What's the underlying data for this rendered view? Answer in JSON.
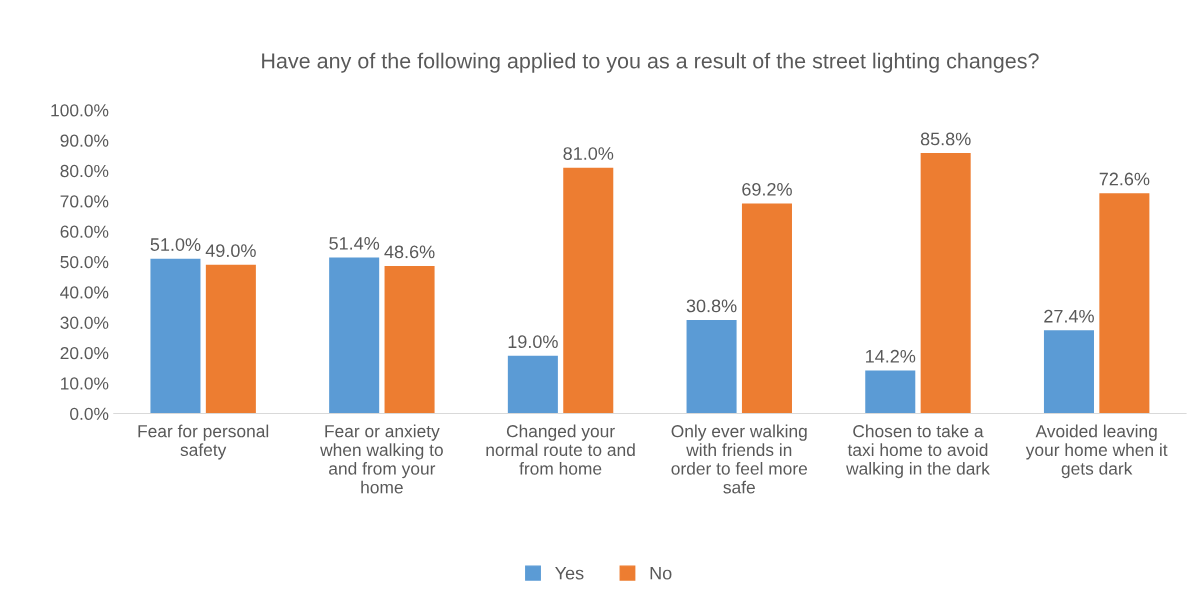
{
  "chart_data": {
    "type": "bar",
    "title": "Have any of the following applied to you as a result of the street lighting changes?",
    "categories": [
      "Fear for personal\nsafety",
      "Fear or anxiety\nwhen walking to\nand from your\nhome",
      "Changed your\nnormal route to and\nfrom home",
      "Only ever walking\nwith friends in\norder to feel more\nsafe",
      "Chosen to take a\ntaxi home to avoid\nwalking in the dark",
      "Avoided leaving\nyour home when it\ngets dark"
    ],
    "series": [
      {
        "name": "Yes",
        "color": "#5b9bd5",
        "values": [
          51.0,
          51.4,
          19.0,
          30.8,
          14.2,
          27.4
        ],
        "value_labels": [
          "51.0%",
          "51.4%",
          "19.0%",
          "30.8%",
          "14.2%",
          "27.4%"
        ]
      },
      {
        "name": "No",
        "color": "#ed7d31",
        "values": [
          49.0,
          48.6,
          81.0,
          69.2,
          85.8,
          72.6
        ],
        "value_labels": [
          "49.0%",
          "48.6%",
          "81.0%",
          "69.2%",
          "85.8%",
          "72.6%"
        ]
      }
    ],
    "ylim": [
      0,
      100
    ],
    "yticks": [
      {
        "value": 0,
        "label": "0.0%"
      },
      {
        "value": 10,
        "label": "10.0%"
      },
      {
        "value": 20,
        "label": "20.0%"
      },
      {
        "value": 30,
        "label": "30.0%"
      },
      {
        "value": 40,
        "label": "40.0%"
      },
      {
        "value": 50,
        "label": "50.0%"
      },
      {
        "value": 60,
        "label": "60.0%"
      },
      {
        "value": 70,
        "label": "70.0%"
      },
      {
        "value": 80,
        "label": "80.0%"
      },
      {
        "value": 90,
        "label": "90.0%"
      },
      {
        "value": 100,
        "label": "100.0%"
      }
    ],
    "legend": "bottom",
    "grid": false
  }
}
